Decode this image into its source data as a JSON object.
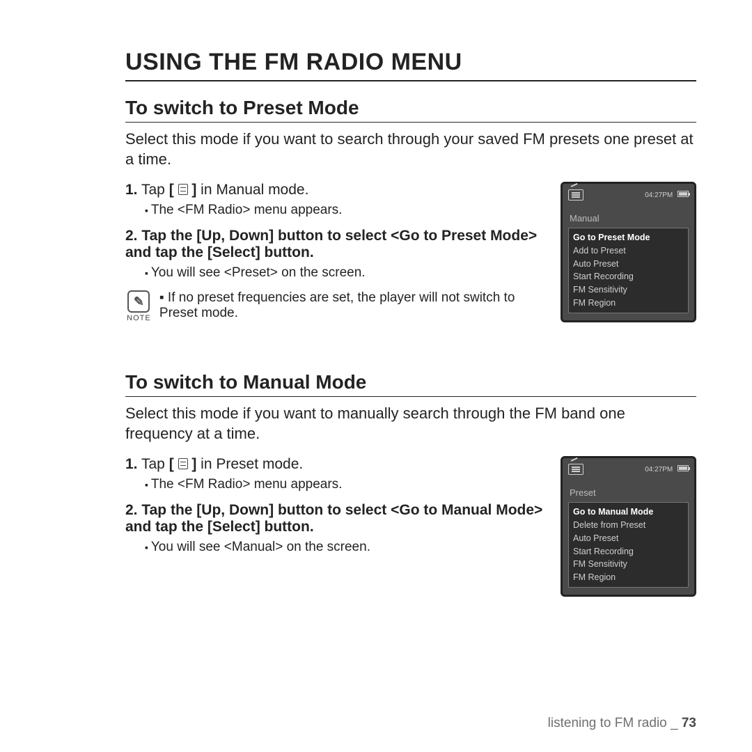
{
  "page": {
    "title": "USING THE FM RADIO MENU",
    "footer_text": "listening to FM radio _ ",
    "page_number": "73"
  },
  "section1": {
    "heading": "To switch to Preset Mode",
    "intro": "Select this mode if you want to search through your saved FM presets one preset at a time.",
    "step1_pre": "Tap ",
    "step1_post": " in Manual mode.",
    "step1_sub": "The <FM Radio> menu appears.",
    "step2": "Tap the [Up, Down] button to select <Go to Preset Mode> and tap the [Select] button.",
    "step2_sub": "You will see <Preset> on the screen.",
    "note_label": "NOTE",
    "note_text": "If no preset frequencies are set, the player will not switch to Preset mode."
  },
  "section2": {
    "heading": "To switch to Manual Mode",
    "intro": "Select this mode if you want to manually search through the FM band one frequency at a time.",
    "step1_pre": "Tap ",
    "step1_post": " in Preset mode.",
    "step1_sub": "The <FM Radio> menu appears.",
    "step2": "Tap the [Up, Down] button to select <Go to Manual Mode> and tap the [Select] button.",
    "step2_sub": "You will see <Manual> on the screen."
  },
  "device1": {
    "time": "04:27PM",
    "mode": "Manual",
    "menu": [
      "Go to Preset Mode",
      "Add to Preset",
      "Auto Preset",
      "Start Recording",
      "FM Sensitivity",
      "FM Region"
    ]
  },
  "device2": {
    "time": "04:27PM",
    "mode": "Preset",
    "menu": [
      "Go to Manual Mode",
      "Delete from Preset",
      "Auto Preset",
      "Start Recording",
      "FM Sensitivity",
      "FM Region"
    ]
  }
}
